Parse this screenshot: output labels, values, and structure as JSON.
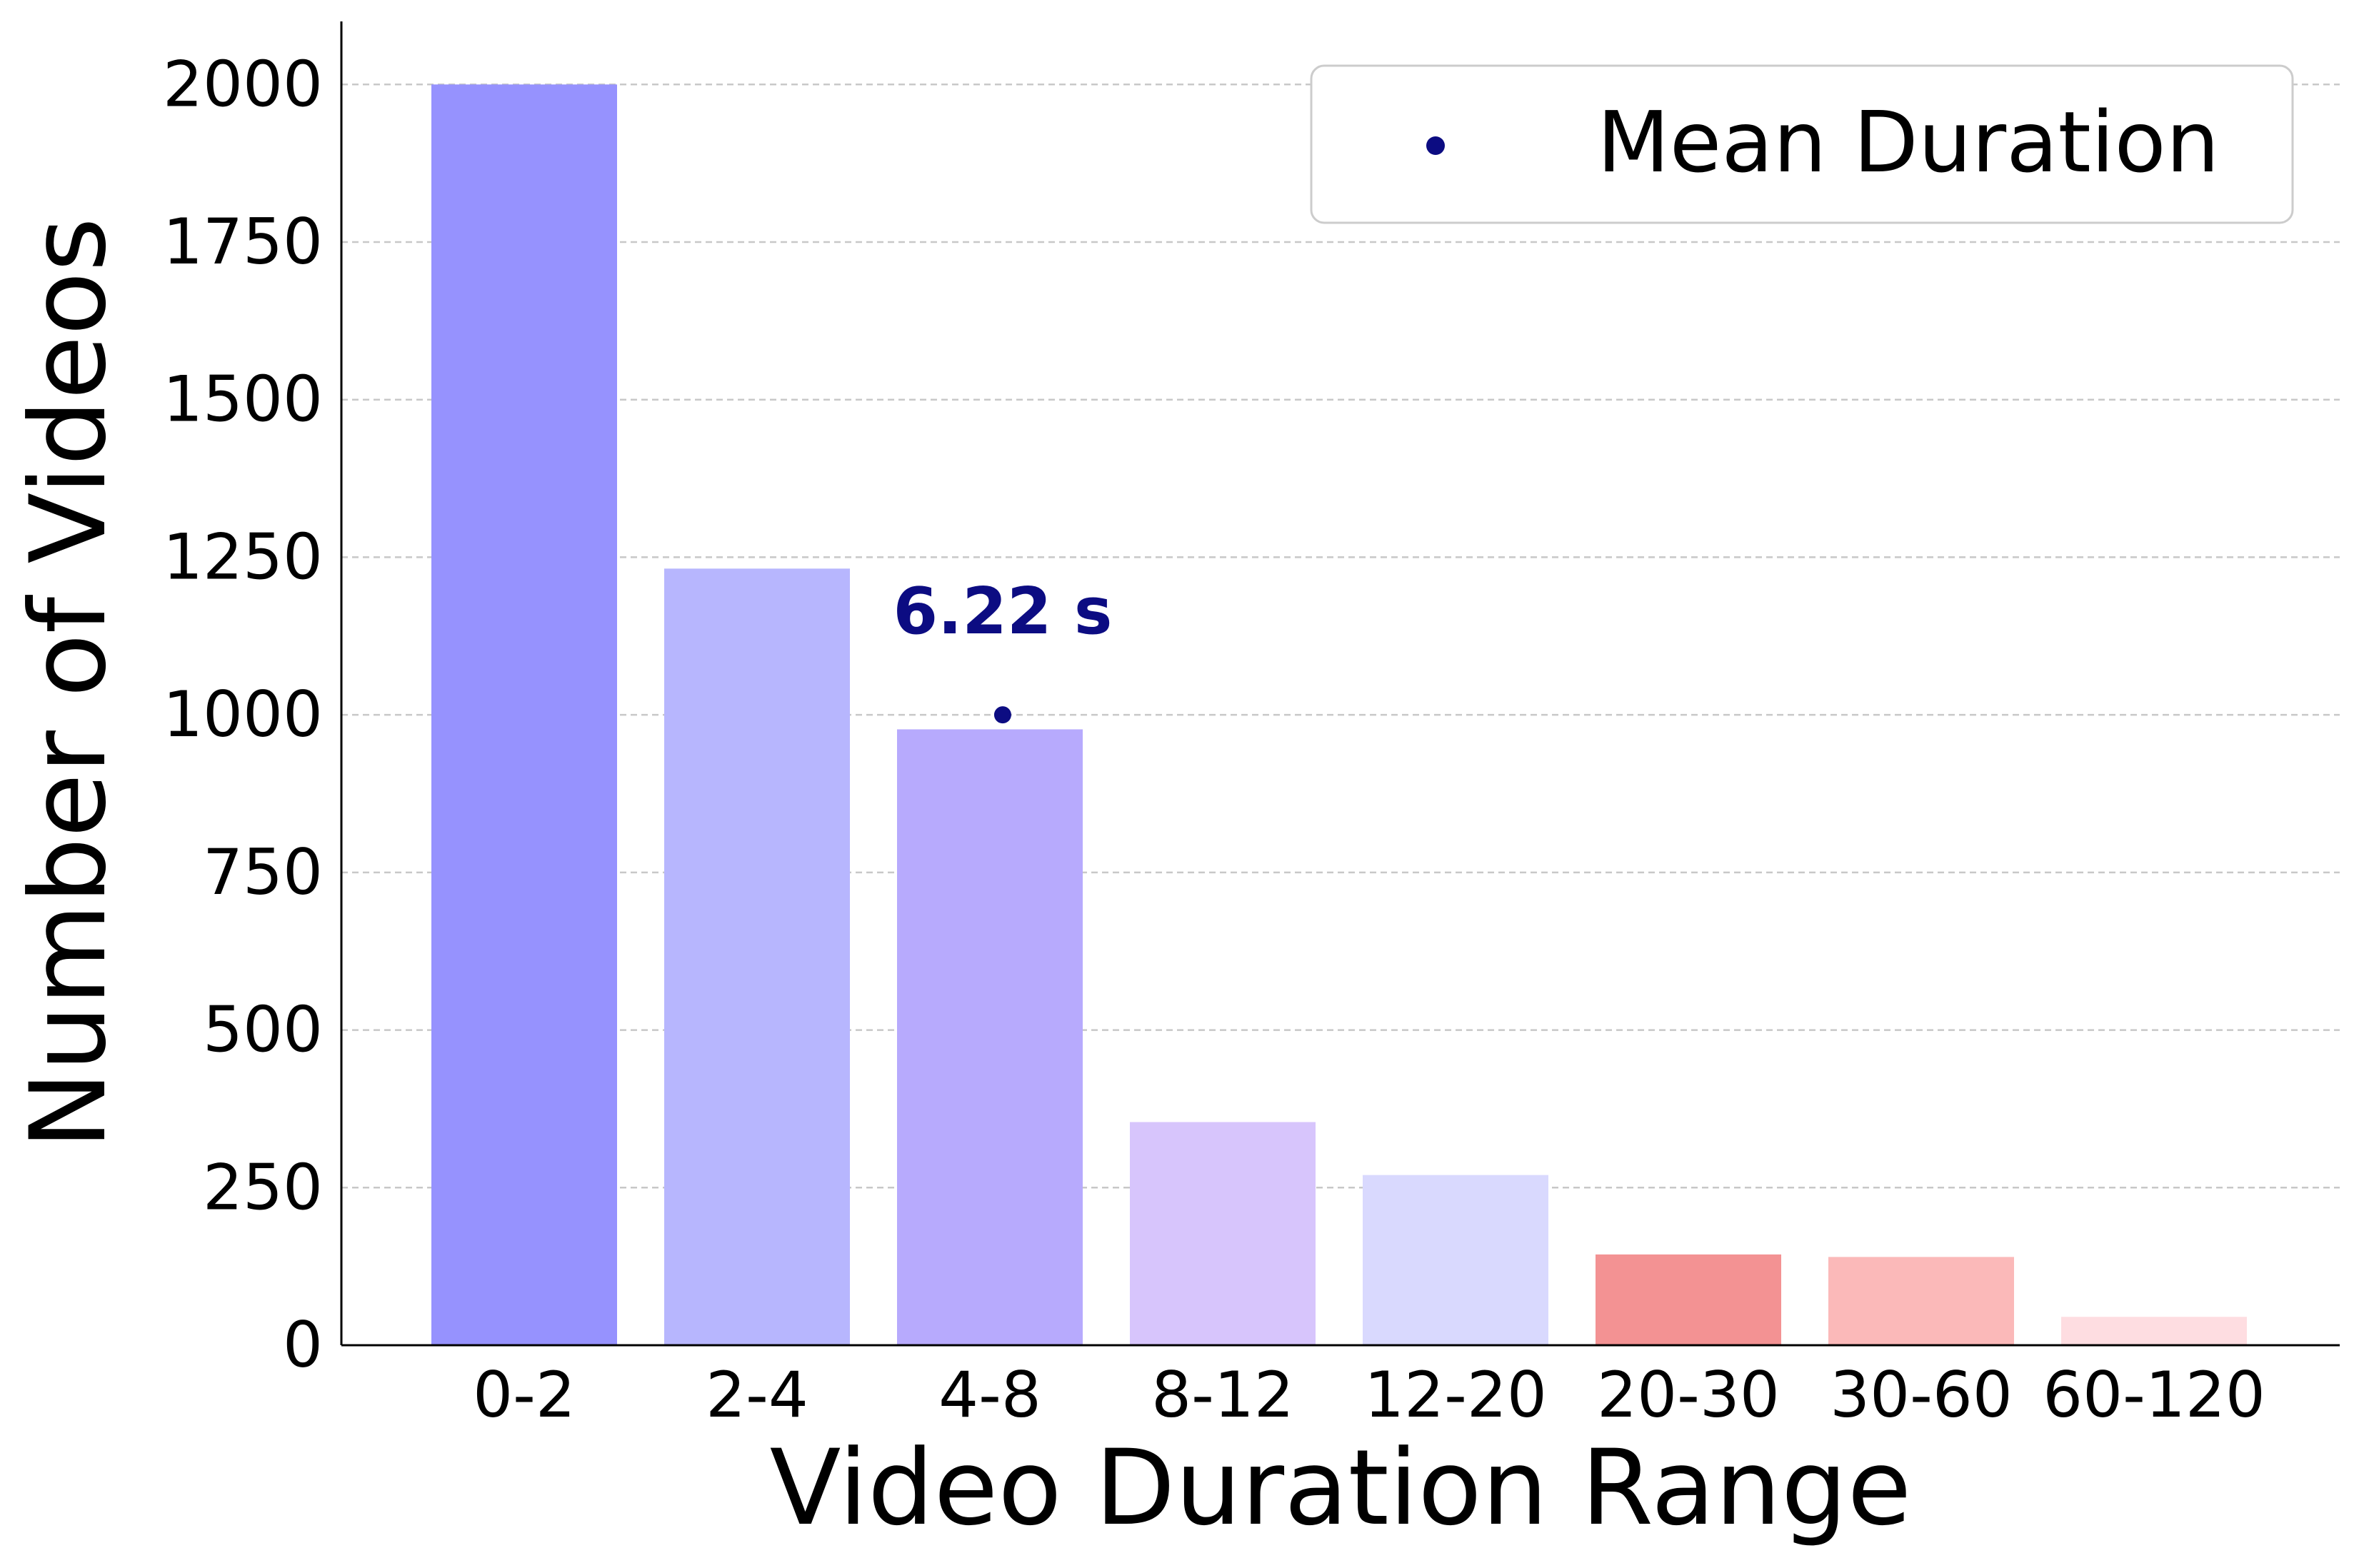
{
  "chart_data": {
    "type": "bar",
    "title": "",
    "xlabel": "Video Duration Range",
    "ylabel": "Number of Videos",
    "categories": [
      "0-2",
      "2-4",
      "4-8",
      "8-12",
      "12-20",
      "20-30",
      "30-60",
      "60-120"
    ],
    "values": [
      2000,
      1232,
      977,
      354,
      270,
      144,
      140,
      45
    ],
    "bar_colors": [
      "#9692fe",
      "#b7b6fe",
      "#b7aafd",
      "#d7c5fc",
      "#d9d9fe",
      "#f39293",
      "#fbb9b9",
      "#fedde1"
    ],
    "ylim": [
      0,
      2100
    ],
    "yticks": [
      0,
      250,
      500,
      750,
      1000,
      1250,
      1500,
      1750,
      2000
    ],
    "grid": "y-dashed",
    "mean_marker": {
      "label": "Mean Duration",
      "annotation": "6.22 s",
      "x_seconds": 6.22,
      "y": 1000,
      "color": "#0c0c82"
    },
    "legend": {
      "placement": "top-right",
      "entries": [
        "Mean Duration"
      ]
    }
  }
}
